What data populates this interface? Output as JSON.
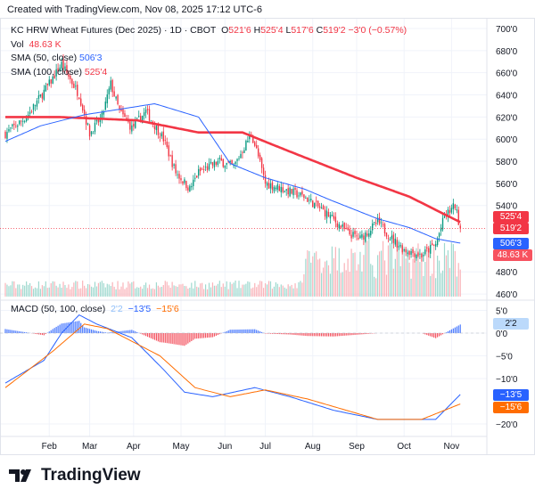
{
  "header": {
    "created": "Created with TradingView.com, Nov 08, 2025 17:12 UTC-6"
  },
  "legend": {
    "symbol": "KC HRW Wheat Futures (Dec 2025) · 1D · CBOT",
    "o_label": "O",
    "o": "521'6",
    "h_label": "H",
    "h": "525'4",
    "l_label": "L",
    "l": "517'6",
    "c_label": "C",
    "c": "519'2",
    "change": "−3'0 (−0.57%)",
    "vol_label": "Vol",
    "vol": "48.63 K",
    "sma50_label": "SMA (50, close)",
    "sma50": "506'3",
    "sma100_label": "SMA (100, close)",
    "sma100": "525'4",
    "macd_label": "MACD (50, 100, close)",
    "macd_hist": "2'2",
    "macd": "−13'5",
    "signal": "−15'6"
  },
  "tags": {
    "sma100": "525'4",
    "close": "519'2",
    "sma50": "506'3",
    "vol": "48.63 K",
    "hist": "2'2",
    "macd": "−13'5",
    "signal": "−15'6"
  },
  "colors": {
    "up": "#089981",
    "down": "#f23645",
    "sma50": "#2962ff",
    "sma100": "#f23645",
    "macd": "#2962ff",
    "signal": "#ff6d00"
  },
  "brand": "TradingView",
  "chart_data": {
    "type": "candlestick",
    "title": "KC HRW Wheat Futures (Dec 2025)",
    "price_axis": {
      "ticks": [
        "700'0",
        "680'0",
        "660'0",
        "640'0",
        "620'0",
        "600'0",
        "580'0",
        "560'0",
        "540'0",
        "480'0",
        "460'0"
      ],
      "values": [
        700,
        680,
        660,
        640,
        620,
        600,
        580,
        560,
        540,
        480,
        460
      ],
      "range": [
        460,
        700
      ]
    },
    "macd_axis": {
      "ticks": [
        "5'0",
        "0'0",
        "−5'0",
        "−10'0",
        "−20'0"
      ],
      "values": [
        5,
        0,
        -5,
        -10,
        -20
      ],
      "range": [
        -22,
        6
      ]
    },
    "x_labels": [
      "Feb",
      "Mar",
      "Apr",
      "May",
      "Jun",
      "Jul",
      "Aug",
      "Sep",
      "Oct",
      "Nov"
    ],
    "x_label_days": [
      25,
      48,
      73,
      100,
      125,
      148,
      175,
      200,
      227,
      254
    ],
    "close_waypoints": [
      [
        0,
        605
      ],
      [
        12,
        620
      ],
      [
        25,
        650
      ],
      [
        32,
        668
      ],
      [
        42,
        640
      ],
      [
        48,
        605
      ],
      [
        55,
        620
      ],
      [
        60,
        650
      ],
      [
        65,
        625
      ],
      [
        72,
        610
      ],
      [
        80,
        625
      ],
      [
        90,
        600
      ],
      [
        97,
        570
      ],
      [
        105,
        555
      ],
      [
        110,
        570
      ],
      [
        122,
        580
      ],
      [
        130,
        575
      ],
      [
        140,
        605
      ],
      [
        143,
        590
      ],
      [
        148,
        560
      ],
      [
        158,
        555
      ],
      [
        170,
        548
      ],
      [
        177,
        540
      ],
      [
        185,
        530
      ],
      [
        195,
        515
      ],
      [
        202,
        510
      ],
      [
        212,
        525
      ],
      [
        220,
        510
      ],
      [
        227,
        500
      ],
      [
        237,
        495
      ],
      [
        245,
        505
      ],
      [
        250,
        530
      ],
      [
        256,
        540
      ],
      [
        259,
        519
      ]
    ],
    "sma50_waypoints": [
      [
        0,
        598
      ],
      [
        20,
        612
      ],
      [
        45,
        622
      ],
      [
        85,
        632
      ],
      [
        110,
        620
      ],
      [
        128,
        578
      ],
      [
        148,
        565
      ],
      [
        170,
        555
      ],
      [
        185,
        545
      ],
      [
        212,
        528
      ],
      [
        230,
        520
      ],
      [
        245,
        510
      ],
      [
        259,
        506
      ]
    ],
    "sma100_waypoints": [
      [
        0,
        620
      ],
      [
        30,
        620
      ],
      [
        75,
        617
      ],
      [
        110,
        606
      ],
      [
        135,
        606
      ],
      [
        160,
        590
      ],
      [
        200,
        565
      ],
      [
        230,
        548
      ],
      [
        250,
        532
      ],
      [
        259,
        525
      ]
    ],
    "macd_waypoints": [
      [
        0,
        -11
      ],
      [
        22,
        -6
      ],
      [
        32,
        0
      ],
      [
        42,
        4
      ],
      [
        52,
        2
      ],
      [
        72,
        -1
      ],
      [
        90,
        -8
      ],
      [
        102,
        -13
      ],
      [
        118,
        -14
      ],
      [
        142,
        -12
      ],
      [
        162,
        -14
      ],
      [
        187,
        -17
      ],
      [
        212,
        -19
      ],
      [
        232,
        -19
      ],
      [
        245,
        -19
      ],
      [
        259,
        -13.5
      ]
    ],
    "signal_waypoints": [
      [
        0,
        -12
      ],
      [
        27,
        -4
      ],
      [
        45,
        2
      ],
      [
        58,
        1
      ],
      [
        88,
        -5
      ],
      [
        108,
        -12
      ],
      [
        128,
        -14
      ],
      [
        148,
        -12.5
      ],
      [
        172,
        -14.5
      ],
      [
        212,
        -19
      ],
      [
        237,
        -19
      ],
      [
        259,
        -15.6
      ]
    ],
    "last": {
      "open": 521.75,
      "high": 525.5,
      "low": 517.75,
      "close": 519.25,
      "volume_k": 48.63
    }
  }
}
